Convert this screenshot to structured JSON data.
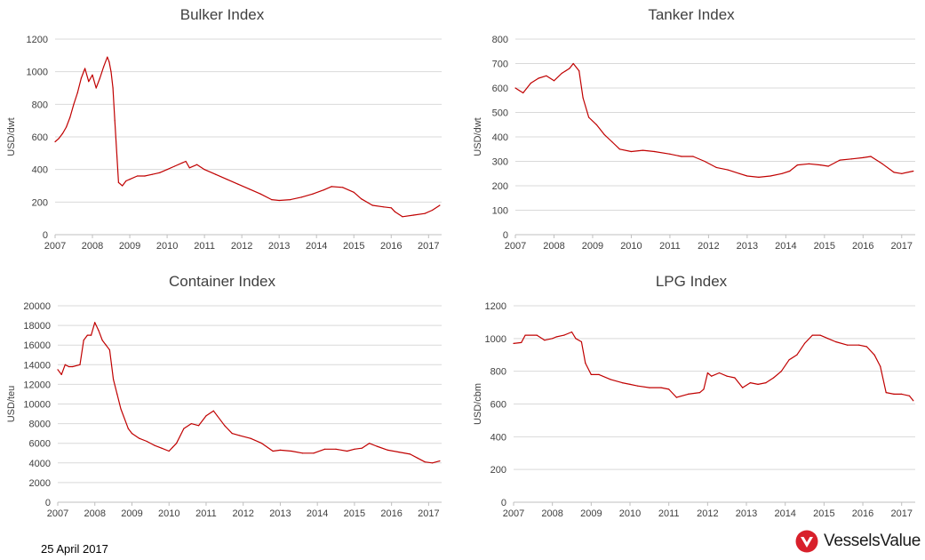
{
  "footer": {
    "date": "25 April 2017",
    "brand": "VesselsValue"
  },
  "colors": {
    "series": "#c00000",
    "brand": "#d8202b"
  },
  "chart_data": [
    {
      "type": "line",
      "title": "Bulker Index",
      "ylabel": "USD/dwt",
      "ylim": [
        0,
        1200
      ],
      "yticks": [
        0,
        200,
        400,
        600,
        800,
        1000,
        1200
      ],
      "xlim": [
        2007,
        2017.35
      ],
      "xticks": [
        "2007",
        "2008",
        "2009",
        "2010",
        "2011",
        "2012",
        "2013",
        "2014",
        "2015",
        "2016",
        "2017"
      ],
      "grid": true,
      "series": [
        {
          "x": [
            2007.0,
            2007.1,
            2007.2,
            2007.3,
            2007.4,
            2007.5,
            2007.6,
            2007.7,
            2007.8,
            2007.9,
            2008.0,
            2008.1,
            2008.2,
            2008.3,
            2008.4,
            2008.45,
            2008.5,
            2008.55,
            2008.6,
            2008.7,
            2008.8,
            2008.9,
            2009.0,
            2009.2,
            2009.4,
            2009.6,
            2009.8,
            2010.0,
            2010.2,
            2010.4,
            2010.5,
            2010.6,
            2010.8,
            2011.0,
            2011.3,
            2011.6,
            2011.9,
            2012.2,
            2012.5,
            2012.8,
            2013.0,
            2013.3,
            2013.6,
            2013.9,
            2014.2,
            2014.4,
            2014.7,
            2015.0,
            2015.2,
            2015.5,
            2015.8,
            2016.0,
            2016.1,
            2016.3,
            2016.6,
            2016.9,
            2017.1,
            2017.3
          ],
          "values": [
            570,
            590,
            620,
            660,
            720,
            800,
            870,
            960,
            1020,
            940,
            980,
            900,
            960,
            1030,
            1090,
            1060,
            1000,
            900,
            700,
            320,
            300,
            330,
            340,
            360,
            360,
            370,
            380,
            400,
            420,
            440,
            450,
            410,
            430,
            400,
            370,
            340,
            310,
            280,
            250,
            215,
            210,
            215,
            230,
            250,
            275,
            295,
            290,
            260,
            220,
            180,
            170,
            165,
            140,
            110,
            120,
            130,
            150,
            180
          ]
        }
      ]
    },
    {
      "type": "line",
      "title": "Tanker Index",
      "ylabel": "USD/dwt",
      "ylim": [
        0,
        800
      ],
      "yticks": [
        0,
        100,
        200,
        300,
        400,
        500,
        600,
        700,
        800
      ],
      "xlim": [
        2007,
        2017.35
      ],
      "xticks": [
        "2007",
        "2008",
        "2009",
        "2010",
        "2011",
        "2012",
        "2013",
        "2014",
        "2015",
        "2016",
        "2017"
      ],
      "grid": true,
      "series": [
        {
          "x": [
            2007.0,
            2007.1,
            2007.2,
            2007.4,
            2007.6,
            2007.8,
            2008.0,
            2008.2,
            2008.4,
            2008.5,
            2008.65,
            2008.75,
            2008.9,
            2009.1,
            2009.3,
            2009.5,
            2009.7,
            2010.0,
            2010.3,
            2010.6,
            2011.0,
            2011.3,
            2011.6,
            2011.9,
            2012.2,
            2012.5,
            2012.8,
            2013.0,
            2013.3,
            2013.6,
            2013.9,
            2014.1,
            2014.3,
            2014.6,
            2014.9,
            2015.1,
            2015.4,
            2015.7,
            2016.0,
            2016.2,
            2016.5,
            2016.8,
            2017.0,
            2017.3
          ],
          "values": [
            600,
            590,
            580,
            620,
            640,
            650,
            630,
            660,
            680,
            700,
            670,
            560,
            480,
            450,
            410,
            380,
            350,
            340,
            345,
            340,
            330,
            320,
            320,
            300,
            275,
            265,
            250,
            240,
            235,
            240,
            250,
            260,
            285,
            290,
            285,
            280,
            305,
            310,
            315,
            320,
            290,
            255,
            250,
            260
          ]
        }
      ]
    },
    {
      "type": "line",
      "title": "Container Index",
      "ylabel": "USD/teu",
      "ylim": [
        0,
        20000
      ],
      "yticks": [
        0,
        2000,
        4000,
        6000,
        8000,
        10000,
        12000,
        14000,
        16000,
        18000,
        20000
      ],
      "xlim": [
        2007,
        2017.35
      ],
      "xticks": [
        "2007",
        "2008",
        "2009",
        "2010",
        "2011",
        "2012",
        "2013",
        "2014",
        "2015",
        "2016",
        "2017"
      ],
      "grid": true,
      "series": [
        {
          "x": [
            2007.0,
            2007.1,
            2007.2,
            2007.3,
            2007.4,
            2007.6,
            2007.7,
            2007.8,
            2007.9,
            2008.0,
            2008.1,
            2008.2,
            2008.3,
            2008.4,
            2008.5,
            2008.6,
            2008.7,
            2008.9,
            2009.0,
            2009.2,
            2009.4,
            2009.6,
            2009.8,
            2010.0,
            2010.1,
            2010.2,
            2010.4,
            2010.6,
            2010.8,
            2011.0,
            2011.2,
            2011.3,
            2011.5,
            2011.7,
            2011.9,
            2012.2,
            2012.5,
            2012.8,
            2013.0,
            2013.3,
            2013.6,
            2013.9,
            2014.2,
            2014.5,
            2014.8,
            2015.0,
            2015.2,
            2015.4,
            2015.6,
            2015.9,
            2016.2,
            2016.5,
            2016.7,
            2016.9,
            2017.1,
            2017.3
          ],
          "values": [
            13500,
            13000,
            14000,
            13800,
            13800,
            14000,
            16500,
            17000,
            17000,
            18300,
            17500,
            16500,
            16000,
            15500,
            12500,
            11000,
            9500,
            7500,
            7000,
            6500,
            6200,
            5800,
            5500,
            5200,
            5600,
            6000,
            7500,
            8000,
            7800,
            8800,
            9300,
            8800,
            7800,
            7000,
            6800,
            6500,
            6000,
            5200,
            5300,
            5200,
            5000,
            5000,
            5400,
            5400,
            5200,
            5400,
            5500,
            6000,
            5700,
            5300,
            5100,
            4900,
            4500,
            4100,
            4000,
            4200
          ]
        }
      ]
    },
    {
      "type": "line",
      "title": "LPG Index",
      "ylabel": "USD/cbm",
      "ylim": [
        0,
        1200
      ],
      "yticks": [
        0,
        200,
        400,
        600,
        800,
        1000,
        1200
      ],
      "xlim": [
        2007,
        2017.35
      ],
      "xticks": [
        "2007",
        "2008",
        "2009",
        "2010",
        "2011",
        "2012",
        "2013",
        "2014",
        "2015",
        "2016",
        "2017"
      ],
      "grid": true,
      "series": [
        {
          "x": [
            2007.0,
            2007.2,
            2007.3,
            2007.6,
            2007.8,
            2008.0,
            2008.1,
            2008.3,
            2008.5,
            2008.6,
            2008.75,
            2008.85,
            2009.0,
            2009.2,
            2009.5,
            2009.8,
            2010.0,
            2010.2,
            2010.5,
            2010.8,
            2011.0,
            2011.2,
            2011.5,
            2011.8,
            2011.9,
            2012.0,
            2012.1,
            2012.3,
            2012.5,
            2012.7,
            2012.9,
            2013.1,
            2013.3,
            2013.5,
            2013.7,
            2013.9,
            2014.1,
            2014.3,
            2014.5,
            2014.7,
            2014.9,
            2015.1,
            2015.3,
            2015.6,
            2015.9,
            2016.1,
            2016.3,
            2016.45,
            2016.6,
            2016.8,
            2017.0,
            2017.2,
            2017.3
          ],
          "values": [
            970,
            975,
            1020,
            1020,
            990,
            1000,
            1010,
            1020,
            1040,
            1000,
            980,
            850,
            780,
            780,
            750,
            730,
            720,
            710,
            700,
            700,
            690,
            640,
            660,
            670,
            690,
            790,
            770,
            790,
            770,
            760,
            700,
            730,
            720,
            730,
            760,
            800,
            870,
            900,
            970,
            1020,
            1020,
            1000,
            980,
            960,
            960,
            950,
            900,
            830,
            670,
            660,
            660,
            650,
            620
          ]
        }
      ]
    }
  ]
}
